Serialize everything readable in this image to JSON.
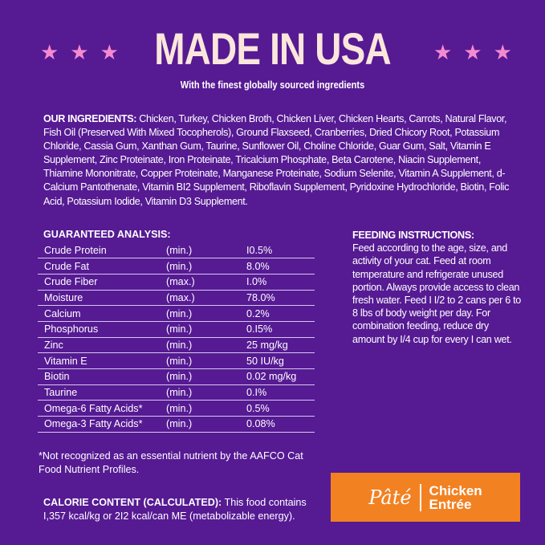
{
  "header": {
    "title": "MADE IN USA",
    "subtitle": "With the finest globally sourced ingredients",
    "star_color": "#f58ad0",
    "stars": "★★★"
  },
  "ingredients": {
    "label": "OUR INGREDIENTS:",
    "text": " Chicken, Turkey, Chicken Broth, Chicken Liver, Chicken Hearts, Carrots, Natural Flavor, Fish Oil (Preserved With Mixed Tocopherols), Ground Flaxseed, Cranberries, Dried Chicory Root, Potassium Chloride, Cassia Gum, Xanthan Gum, Taurine, Sunflower Oil, Choline Chloride, Guar Gum, Salt, Vitamin E Supplement, Zinc Proteinate, Iron Proteinate, Tricalcium Phosphate, Beta Carotene, Niacin Supplement, Thiamine Mononitrate, Copper Proteinate, Manganese Proteinate, Sodium Selenite, Vitamin A Supplement, d-Calcium Pantothenate, Vitamin BI2 Supplement, Riboflavin Supplement, Pyridoxine Hydrochloride, Biotin, Folic Acid, Potassium Iodide, Vitamin D3 Supplement."
  },
  "analysis": {
    "label": "GUARANTEED ANALYSIS:",
    "rows": [
      [
        "Crude Protein",
        "(min.)",
        "I0.5%"
      ],
      [
        "Crude Fat",
        "(min.)",
        "8.0%"
      ],
      [
        "Crude Fiber",
        "(max.)",
        "I.0%"
      ],
      [
        "Moisture",
        "(max.)",
        "78.0%"
      ],
      [
        "Calcium",
        "(min.)",
        "0.2%"
      ],
      [
        "Phosphorus",
        "(min.)",
        "0.I5%"
      ],
      [
        "Zinc",
        "(min.)",
        "25 mg/kg"
      ],
      [
        "Vitamin E",
        "(min.)",
        "50 IU/kg"
      ],
      [
        "Biotin",
        "(min.)",
        "0.02 mg/kg"
      ],
      [
        "Taurine",
        "(min.)",
        "0.I%"
      ],
      [
        "Omega-6 Fatty Acids*",
        "(min.)",
        "0.5%"
      ],
      [
        "Omega-3 Fatty Acids*",
        "(min.)",
        "0.08%"
      ]
    ]
  },
  "feeding": {
    "label": "FEEDING INSTRUCTIONS:",
    "text": "Feed according to the age, size, and activity of your cat. Feed at room temperature and refrigerate unused portion. Always provide access to clean fresh water. Feed I I/2 to 2 cans per 6 to 8 lbs of body weight per day. For combination feeding, reduce dry amount by I/4 cup for every I can wet."
  },
  "footnote": "*Not recognized as an essential nutrient by the AAFCO Cat Food Nutrient Profiles.",
  "calorie": {
    "label": "CALORIE CONTENT (CALCULATED):",
    "text": " This food contains I,357 kcal/kg or 2I2 kcal/can ME (metabolizable energy)."
  },
  "badge": {
    "style": "Pâté",
    "line1": "Chicken",
    "line2": "Entrée",
    "color": "#f28122"
  }
}
